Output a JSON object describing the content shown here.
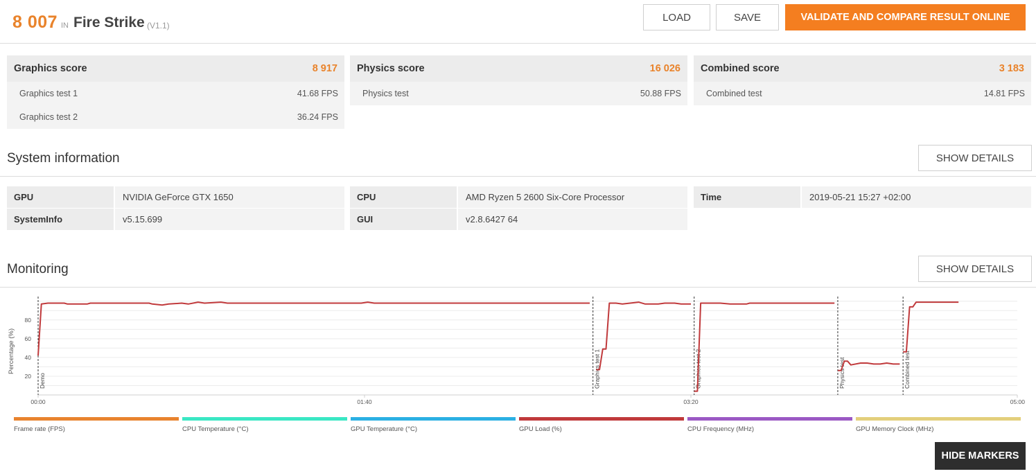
{
  "header": {
    "score": "8 007",
    "in_label": "IN",
    "test_name": "Fire Strike",
    "version": "(V1.1)",
    "load_label": "LOAD",
    "save_label": "SAVE",
    "validate_label": "VALIDATE AND COMPARE RESULT ONLINE"
  },
  "scores": {
    "graphics": {
      "title": "Graphics score",
      "value": "8 917",
      "rows": [
        {
          "label": "Graphics test 1",
          "value": "41.68 FPS"
        },
        {
          "label": "Graphics test 2",
          "value": "36.24 FPS"
        }
      ]
    },
    "physics": {
      "title": "Physics score",
      "value": "16 026",
      "rows": [
        {
          "label": "Physics test",
          "value": "50.88 FPS"
        }
      ]
    },
    "combined": {
      "title": "Combined score",
      "value": "3 183",
      "rows": [
        {
          "label": "Combined test",
          "value": "14.81 FPS"
        }
      ]
    }
  },
  "system_info": {
    "title": "System information",
    "details_label": "SHOW DETAILS",
    "gpu_label": "GPU",
    "gpu_value": "NVIDIA GeForce GTX 1650",
    "sysinfo_label": "SystemInfo",
    "sysinfo_value": "v5.15.699",
    "cpu_label": "CPU",
    "cpu_value": "AMD Ryzen 5 2600 Six-Core Processor",
    "gui_label": "GUI",
    "gui_value": "v2.8.6427 64",
    "time_label": "Time",
    "time_value": "2019-05-21 15:27 +02:00"
  },
  "monitoring": {
    "title": "Monitoring",
    "details_label": "SHOW DETAILS",
    "hide_markers_label": "HIDE MARKERS",
    "legend": [
      {
        "label": "Frame rate (FPS)",
        "color": "#e8832e"
      },
      {
        "label": "CPU Temperature (°C)",
        "color": "#3ae7c4"
      },
      {
        "label": "GPU Temperature (°C)",
        "color": "#2bb0e3"
      },
      {
        "label": "GPU Load (%)",
        "color": "#c0393b"
      },
      {
        "label": "CPU Frequency (MHz)",
        "color": "#9b59c4"
      },
      {
        "label": "GPU Memory Clock (MHz)",
        "color": "#e3cf7c"
      }
    ]
  },
  "chart_data": {
    "type": "line",
    "ylabel": "Percentage (%)",
    "xlabel": "",
    "xlim_seconds": [
      0,
      300
    ],
    "ylim": [
      0,
      105
    ],
    "y_ticks": [
      20,
      40,
      60,
      80
    ],
    "x_ticks": [
      "00:00",
      "01:40",
      "03:20",
      "05:00"
    ],
    "x_tick_seconds": [
      0,
      100,
      200,
      300
    ],
    "markers": [
      {
        "label": "Demo",
        "t": 0
      },
      {
        "label": "Graphics test 1",
        "t": 170
      },
      {
        "label": "Graphics test 2",
        "t": 201
      },
      {
        "label": "Physics test",
        "t": 245
      },
      {
        "label": "Combined test",
        "t": 265
      }
    ],
    "series": [
      {
        "name": "GPU Load (%)",
        "color": "#c0393b",
        "segments": [
          [
            [
              0,
              42
            ],
            [
              1,
              97
            ],
            [
              3,
              98
            ],
            [
              8,
              98
            ],
            [
              9,
              97
            ],
            [
              15,
              97
            ],
            [
              16,
              98
            ],
            [
              34,
              98
            ],
            [
              35,
              97
            ],
            [
              38,
              96
            ],
            [
              40,
              97
            ],
            [
              44,
              98
            ],
            [
              46,
              97
            ],
            [
              49,
              99
            ],
            [
              51,
              98
            ],
            [
              56,
              99
            ],
            [
              58,
              98
            ],
            [
              99,
              98
            ],
            [
              101,
              99
            ],
            [
              103,
              98
            ],
            [
              169,
              98
            ]
          ],
          [
            [
              171,
              27
            ],
            [
              172,
              27
            ],
            [
              173,
              49
            ],
            [
              174,
              49
            ],
            [
              175,
              98
            ],
            [
              177,
              98
            ],
            [
              179,
              97
            ],
            [
              184,
              99
            ],
            [
              186,
              97
            ],
            [
              190,
              97
            ],
            [
              192,
              98
            ],
            [
              195,
              98
            ],
            [
              197,
              97
            ],
            [
              200,
              97
            ]
          ],
          [
            [
              201,
              4
            ],
            [
              202,
              4
            ],
            [
              203,
              98
            ],
            [
              205,
              98
            ],
            [
              209,
              98
            ],
            [
              212,
              97
            ],
            [
              217,
              97
            ],
            [
              218,
              98
            ],
            [
              244,
              98
            ]
          ],
          [
            [
              245,
              26
            ],
            [
              246,
              26
            ],
            [
              247,
              36
            ],
            [
              248,
              36
            ],
            [
              249,
              32
            ],
            [
              252,
              34
            ],
            [
              254,
              34
            ],
            [
              256,
              33
            ],
            [
              258,
              33
            ],
            [
              260,
              34
            ],
            [
              262,
              33
            ],
            [
              264,
              33
            ]
          ],
          [
            [
              265,
              46
            ],
            [
              266,
              46
            ],
            [
              267,
              94
            ],
            [
              268,
              94
            ],
            [
              269,
              99
            ],
            [
              282,
              99
            ]
          ]
        ]
      }
    ]
  }
}
